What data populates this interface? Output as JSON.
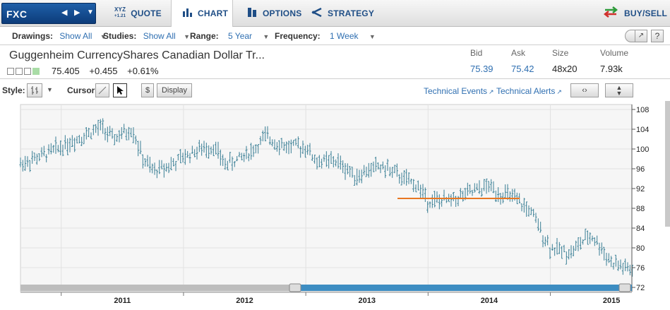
{
  "symbol": {
    "ticker": "FXC",
    "prev_icon": "triangle-left-icon",
    "next_icon": "triangle-right-icon",
    "dropdown_icon": "chevron-down-icon"
  },
  "tabs": [
    {
      "label": "QUOTE",
      "icon": "xyz-quote-icon",
      "icon_text_top": "XYZ",
      "icon_text_bottom": "+1.21"
    },
    {
      "label": "CHART",
      "icon": "bar-chart-icon",
      "active": true
    },
    {
      "label": "OPTIONS",
      "icon": "options-icon"
    },
    {
      "label": "STRATEGY",
      "icon": "strategy-icon"
    },
    {
      "label": "BUY/SELL",
      "icon": "buy-sell-arrows-icon"
    }
  ],
  "toolbar": {
    "drawings_label": "Drawings:",
    "drawings_value": "Show All",
    "studies_label": "Studies:",
    "studies_value": "Show All",
    "range_label": "Range:",
    "range_value": "5 Year",
    "frequency_label": "Frequency:",
    "frequency_value": "1 Week",
    "popout_icon": "popout-icon",
    "help_label": "?"
  },
  "quote": {
    "name": "Guggenheim CurrencyShares Canadian Dollar Tr...",
    "last": "75.405",
    "change": "+0.455",
    "change_pct": "+0.61%",
    "bid_label": "Bid",
    "bid": "75.39",
    "ask_label": "Ask",
    "ask": "75.42",
    "size_label": "Size",
    "size": "48x20",
    "volume_label": "Volume",
    "volume": "7.93k"
  },
  "stylebar": {
    "style_label": "Style:",
    "cursor_label": "Cursor:",
    "dollar_label": "$",
    "display_label": "Display",
    "technical_events": "Technical Events",
    "technical_alerts": "Technical Alerts"
  },
  "chart_data": {
    "type": "ohlc",
    "xlabel": "",
    "ylabel": "",
    "x_tick_labels": [
      "2011",
      "2012",
      "2013",
      "2014",
      "2015"
    ],
    "y_ticks": [
      72,
      76,
      80,
      84,
      88,
      92,
      96,
      100,
      104,
      108
    ],
    "ylim": [
      72,
      109
    ],
    "x_range": [
      "2010-09",
      "2015-09"
    ],
    "grid": true,
    "bar_color": "#3a7f95",
    "trendline": {
      "color": "#e87722",
      "x_start": "2013-10",
      "x_end": "2014-10",
      "y": 90
    },
    "weekly_close_points": [
      [
        "2010-09",
        97
      ],
      [
        "2010-11",
        98.5
      ],
      [
        "2011-01",
        100.5
      ],
      [
        "2011-03",
        102.5
      ],
      [
        "2011-05",
        104.5
      ],
      [
        "2011-06",
        102
      ],
      [
        "2011-08",
        104
      ],
      [
        "2011-09",
        98
      ],
      [
        "2011-10",
        95.5
      ],
      [
        "2011-12",
        97
      ],
      [
        "2012-02",
        99.5
      ],
      [
        "2012-04",
        100.5
      ],
      [
        "2012-05",
        97
      ],
      [
        "2012-06",
        97.5
      ],
      [
        "2012-08",
        100
      ],
      [
        "2012-09",
        102.5
      ],
      [
        "2012-11",
        100.5
      ],
      [
        "2013-01",
        100.5
      ],
      [
        "2013-02",
        97.5
      ],
      [
        "2013-04",
        97.5
      ],
      [
        "2013-06",
        94.5
      ],
      [
        "2013-08",
        96.5
      ],
      [
        "2013-09",
        96
      ],
      [
        "2013-11",
        93.5
      ],
      [
        "2013-12",
        92.5
      ],
      [
        "2014-01",
        89.5
      ],
      [
        "2014-03",
        89.5
      ],
      [
        "2014-05",
        91
      ],
      [
        "2014-07",
        92.5
      ],
      [
        "2014-08",
        91
      ],
      [
        "2014-09",
        90.5
      ],
      [
        "2014-11",
        87.5
      ],
      [
        "2015-01",
        80
      ],
      [
        "2015-03",
        79
      ],
      [
        "2015-04",
        81
      ],
      [
        "2015-05",
        82.5
      ],
      [
        "2015-06",
        80
      ],
      [
        "2015-07",
        77
      ],
      [
        "2015-09",
        75.4
      ]
    ]
  }
}
